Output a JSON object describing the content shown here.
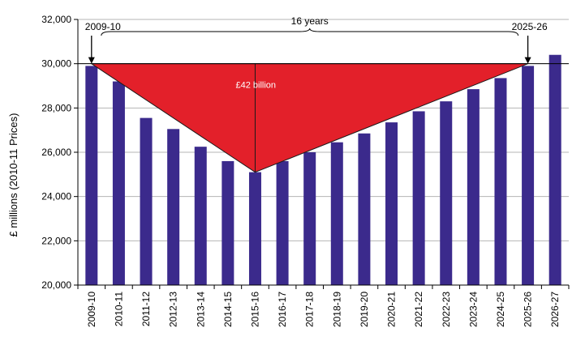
{
  "chart_data": {
    "type": "bar",
    "categories": [
      "2009-10",
      "2010-11",
      "2011-12",
      "2012-13",
      "2013-14",
      "2014-15",
      "2015-16",
      "2016-17",
      "2017-18",
      "2018-19",
      "2019-20",
      "2020-21",
      "2021-22",
      "2022-23",
      "2023-24",
      "2024-25",
      "2025-26",
      "2026-27"
    ],
    "values": [
      29900,
      29200,
      27550,
      27050,
      26250,
      25600,
      25100,
      25600,
      26000,
      26450,
      26850,
      27350,
      27850,
      28300,
      28850,
      29350,
      29900,
      30400
    ],
    "title": "",
    "xlabel": "",
    "ylabel": "£ millions (2010-11 Prices)",
    "ylim": [
      20000,
      32000
    ],
    "yticks": [
      20000,
      22000,
      24000,
      26000,
      28000,
      30000,
      32000
    ],
    "ytick_labels": [
      "20,000",
      "22,000",
      "24,000",
      "26,000",
      "28,000",
      "30,000",
      "32,000"
    ],
    "grid": "horizontal",
    "bar_color": "#3b2a8c",
    "triangle_color": "#e3202a",
    "annotations": {
      "start_label": "2009-10",
      "end_label": "2025-26",
      "span_label": "16 years",
      "area_label": "£42 billion"
    },
    "reference_level": 30000,
    "triangle_vertices_categories": [
      "2009-10",
      "2015-16",
      "2025-26"
    ],
    "triangle_vertices_values": [
      30000,
      25100,
      30000
    ]
  }
}
